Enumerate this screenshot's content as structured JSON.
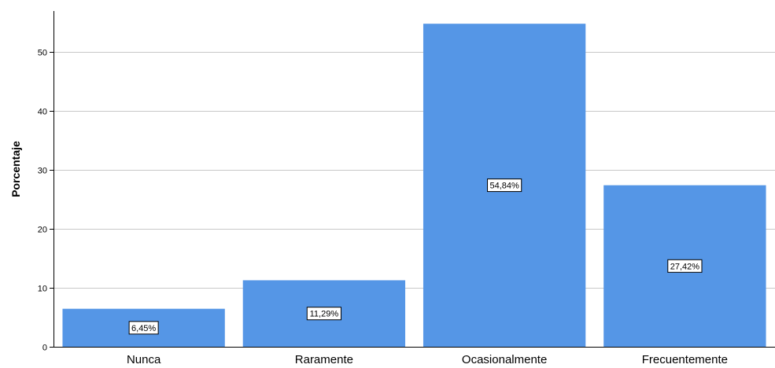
{
  "chart_data": {
    "type": "bar",
    "categories": [
      "Nunca",
      "Raramente",
      "Ocasionalmente",
      "Frecuentemente"
    ],
    "values": [
      6.45,
      11.29,
      54.84,
      27.42
    ],
    "data_labels": [
      "6,45%",
      "11,29%",
      "54,84%",
      "27,42%"
    ],
    "xlabel": "",
    "ylabel": "Porcentaje",
    "ylim": [
      0,
      57
    ],
    "yticks": [
      0,
      10,
      20,
      30,
      40,
      50
    ],
    "grid": true,
    "bar_color": "#5596e6",
    "grid_color": "#c8c8c8"
  }
}
